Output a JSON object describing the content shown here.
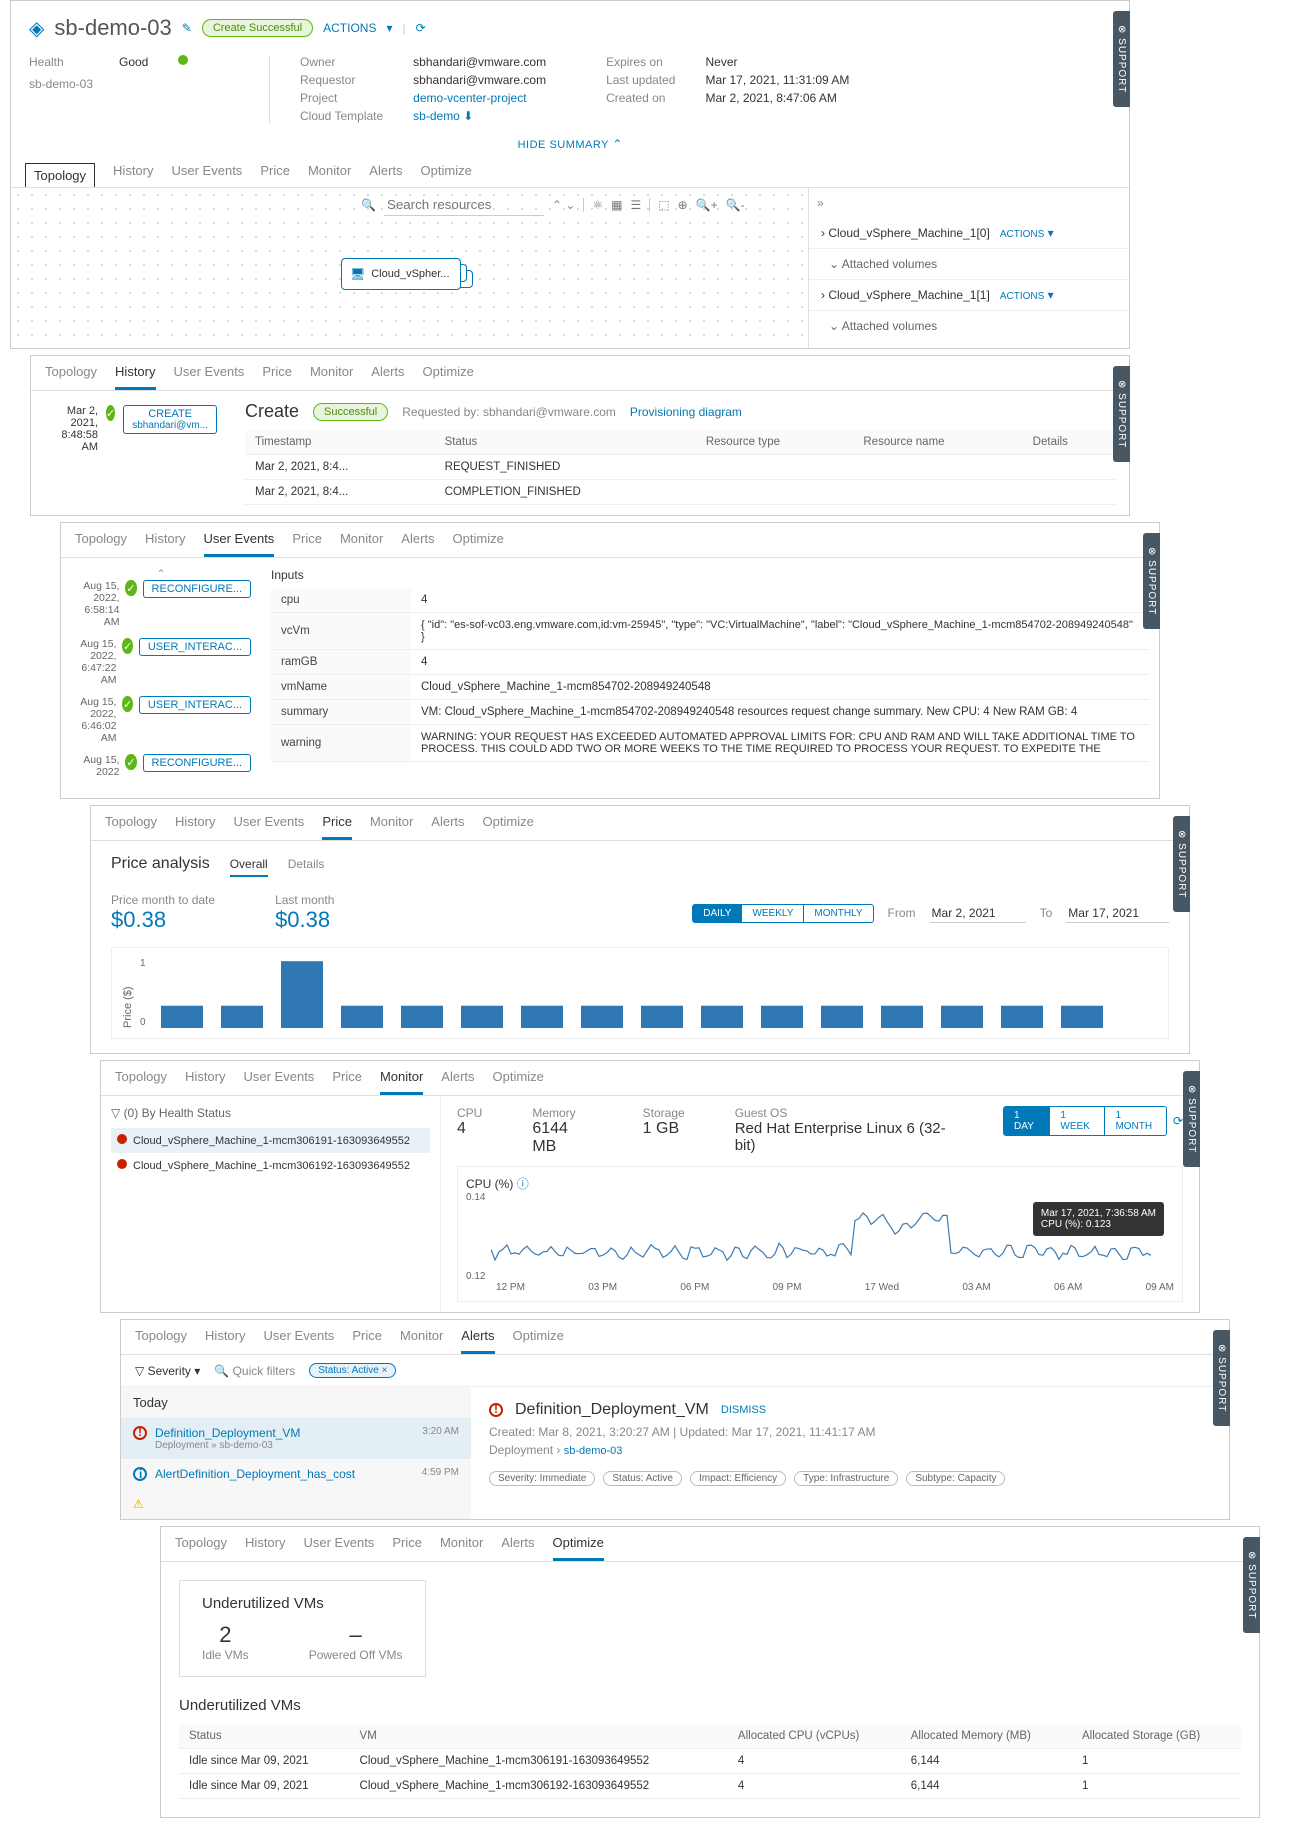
{
  "header": {
    "title": "sb-demo-03",
    "status_pill": "Create Successful",
    "actions_link": "ACTIONS",
    "health_label": "Health",
    "health_value": "Good",
    "subtitle": "sb-demo-03",
    "fields": {
      "owner_label": "Owner",
      "owner_value": "sbhandari@vmware.com",
      "requestor_label": "Requestor",
      "requestor_value": "sbhandari@vmware.com",
      "project_label": "Project",
      "project_value": "demo-vcenter-project",
      "template_label": "Cloud Template",
      "template_value": "sb-demo",
      "expires_label": "Expires on",
      "expires_value": "Never",
      "updated_label": "Last updated",
      "updated_value": "Mar 17, 2021, 11:31:09 AM",
      "created_label": "Created on",
      "created_value": "Mar 2, 2021, 8:47:06 AM"
    },
    "hide_summary": "HIDE SUMMARY"
  },
  "tabs": [
    "Topology",
    "History",
    "User Events",
    "Price",
    "Monitor",
    "Alerts",
    "Optimize"
  ],
  "topology": {
    "search_placeholder": "Search resources",
    "node_label": "Cloud_vSpher...",
    "side": {
      "item1": "Cloud_vSphere_Machine_1[0]",
      "item2": "Cloud_vSphere_Machine_1[1]",
      "attached": "Attached volumes",
      "actions": "ACTIONS"
    }
  },
  "history": {
    "title": "Create",
    "status": "Successful",
    "requested_by_label": "Requested by:",
    "requested_by": "sbhandari@vmware.com",
    "prov_link": "Provisioning diagram",
    "event_time": "Mar 2, 2021, 8:48:58 AM",
    "event_label": "CREATE",
    "event_user": "sbhandari@vm...",
    "cols": {
      "ts": "Timestamp",
      "status": "Status",
      "rtype": "Resource type",
      "rname": "Resource name",
      "details": "Details"
    },
    "rows": [
      {
        "ts": "Mar 2, 2021, 8:4...",
        "status": "REQUEST_FINISHED"
      },
      {
        "ts": "Mar 2, 2021, 8:4...",
        "status": "COMPLETION_FINISHED"
      }
    ]
  },
  "user_events": {
    "inputs_label": "Inputs",
    "events": [
      {
        "time": "Aug 15, 2022, 6:58:14 AM",
        "label": "RECONFIGURE..."
      },
      {
        "time": "Aug 15, 2022, 6:47:22 AM",
        "label": "USER_INTERAC..."
      },
      {
        "time": "Aug 15, 2022, 6:46:02 AM",
        "label": "USER_INTERAC..."
      },
      {
        "time": "Aug 15, 2022",
        "label": "RECONFIGURE..."
      }
    ],
    "rows": {
      "cpu_k": "cpu",
      "cpu_v": "4",
      "vcvm_k": "vcVm",
      "vcvm_v": "{ \"id\": \"es-sof-vc03.eng.vmware.com,id:vm-25945\", \"type\": \"VC:VirtualMachine\", \"label\": \"Cloud_vSphere_Machine_1-mcm854702-208949240548\" }",
      "ram_k": "ramGB",
      "ram_v": "4",
      "vmname_k": "vmName",
      "vmname_v": "Cloud_vSphere_Machine_1-mcm854702-208949240548",
      "summary_k": "summary",
      "summary_v": "VM: Cloud_vSphere_Machine_1-mcm854702-208949240548 resources request change summary. New CPU: 4 New RAM GB: 4",
      "warning_k": "warning",
      "warning_v": "WARNING: YOUR REQUEST HAS EXCEEDED AUTOMATED APPROVAL LIMITS FOR: CPU AND RAM AND WILL TAKE ADDITIONAL TIME TO PROCESS. THIS COULD ADD TWO OR MORE WEEKS TO THE TIME REQUIRED TO PROCESS YOUR REQUEST. TO EXPEDITE THE"
    }
  },
  "price": {
    "title": "Price analysis",
    "subtabs": {
      "overall": "Overall",
      "details": "Details"
    },
    "mtd_label": "Price month to date",
    "mtd_value": "$0.38",
    "last_label": "Last month",
    "last_value": "$0.38",
    "seg": {
      "daily": "DAILY",
      "weekly": "WEEKLY",
      "monthly": "MONTHLY"
    },
    "from_label": "From",
    "from_value": "Mar 2, 2021",
    "to_label": "To",
    "to_value": "Mar 17, 2021",
    "ylabel": "Price ($)",
    "y_ticks": [
      "0",
      "1"
    ],
    "chart": {
      "type": "bar",
      "bar_color": "#2f78b3",
      "background": "#ffffff",
      "values": [
        0.35,
        0.35,
        1.05,
        0.35,
        0.35,
        0.35,
        0.35,
        0.35,
        0.35,
        0.35,
        0.35,
        0.35,
        0.35,
        0.35,
        0.35,
        0.35
      ],
      "ylim": [
        0,
        1.1
      ],
      "bar_width": 0.7
    }
  },
  "monitor": {
    "filter_label": "(0) By Health Status",
    "vms": [
      "Cloud_vSphere_Machine_1-mcm306191-163093649552",
      "Cloud_vSphere_Machine_1-mcm306192-163093649552"
    ],
    "stats": {
      "cpu_label": "CPU",
      "cpu_value": "4",
      "mem_label": "Memory",
      "mem_value": "6144 MB",
      "stor_label": "Storage",
      "stor_value": "1 GB",
      "os_label": "Guest OS",
      "os_value": "Red Hat Enterprise Linux 6 (32-bit)"
    },
    "seg": {
      "day": "1 DAY",
      "week": "1 WEEK",
      "month": "1 MONTH"
    },
    "chart_title": "CPU (%)",
    "y_ticks": [
      "0.12",
      "0.14"
    ],
    "x_ticks": [
      "12 PM",
      "03 PM",
      "06 PM",
      "09 PM",
      "17 Wed",
      "03 AM",
      "06 AM",
      "09 AM"
    ],
    "tooltip_time": "Mar 17, 2021, 7:36:58 AM",
    "tooltip_value": "CPU (%): 0.123",
    "chart": {
      "type": "line",
      "line_color": "#3b7bb6",
      "ylim": [
        0.11,
        0.145
      ]
    }
  },
  "alerts": {
    "severity_label": "Severity",
    "quick_filters": "Quick filters",
    "status_chip": "Status: Active",
    "today": "Today",
    "list": [
      {
        "title": "Definition_Deployment_VM",
        "sub": "Deployment » sb-demo-03",
        "time": "3:20 AM",
        "icon": "red"
      },
      {
        "title": "AlertDefinition_Deployment_has_cost",
        "sub": "",
        "time": "4:59 PM",
        "icon": "blue"
      }
    ],
    "detail": {
      "title": "Definition_Deployment_VM",
      "dismiss": "DISMISS",
      "meta": "Created: Mar 8, 2021, 3:20:27 AM  |  Updated: Mar 17, 2021, 11:41:17 AM",
      "crumb": "Deployment » sb-demo-03",
      "tags": {
        "sev": "Severity: Immediate",
        "status": "Status: Active",
        "impact": "Impact: Efficiency",
        "type": "Type: Infrastructure",
        "subtype": "Subtype: Capacity"
      }
    }
  },
  "optimize": {
    "title": "Underutilized VMs",
    "idle_val": "2",
    "idle_label": "Idle VMs",
    "off_val": "–",
    "off_label": "Powered Off VMs",
    "section": "Underutilized VMs",
    "cols": {
      "status": "Status",
      "vm": "VM",
      "cpu": "Allocated CPU (vCPUs)",
      "mem": "Allocated Memory (MB)",
      "stor": "Allocated Storage (GB)"
    },
    "rows": [
      {
        "status": "Idle since Mar 09, 2021",
        "vm": "Cloud_vSphere_Machine_1-mcm306191-163093649552",
        "cpu": "4",
        "mem": "6,144",
        "stor": "1"
      },
      {
        "status": "Idle since Mar 09, 2021",
        "vm": "Cloud_vSphere_Machine_1-mcm306192-163093649552",
        "cpu": "4",
        "mem": "6,144",
        "stor": "1"
      }
    ]
  }
}
